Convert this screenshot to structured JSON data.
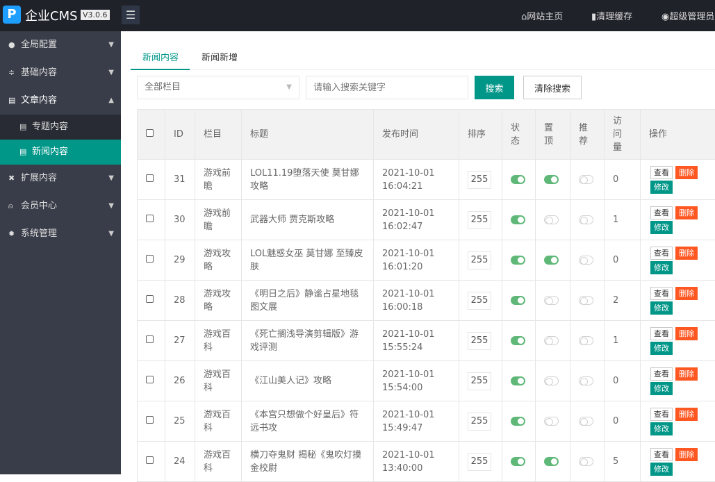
{
  "header": {
    "brand": "企业CMS",
    "version": "V3.0.6",
    "links": [
      {
        "icon": "home-icon",
        "label": "网站主页"
      },
      {
        "icon": "trash-icon",
        "label": "清理缓存"
      },
      {
        "icon": "user-circle-icon",
        "label": "超级管理员"
      }
    ]
  },
  "sidebar": {
    "items": [
      {
        "icon": "globe-icon",
        "label": "全局配置",
        "expanded": false
      },
      {
        "icon": "sliders-icon",
        "label": "基础内容",
        "expanded": false
      },
      {
        "icon": "document-icon",
        "label": "文章内容",
        "expanded": true,
        "children": [
          {
            "label": "专题内容",
            "active": false
          },
          {
            "label": "新闻内容",
            "active": true
          }
        ]
      },
      {
        "icon": "expand-icon",
        "label": "扩展内容",
        "expanded": false
      },
      {
        "icon": "lock-user-icon",
        "label": "会员中心",
        "expanded": false
      },
      {
        "icon": "gear-icon",
        "label": "系统管理",
        "expanded": false
      }
    ]
  },
  "tabs": [
    {
      "label": "新闻内容",
      "active": true
    },
    {
      "label": "新闻新增",
      "active": false
    }
  ],
  "filter": {
    "category": "全部栏目",
    "search_placeholder": "请输入搜索关键字",
    "search_label": "搜索",
    "clear_label": "清除搜索"
  },
  "table": {
    "headers": [
      "ID",
      "栏目",
      "标题",
      "发布时间",
      "排序",
      "状态",
      "置顶",
      "推荐",
      "访问量",
      "操作"
    ],
    "actions": {
      "view": "查看",
      "delete": "删除",
      "edit": "修改"
    },
    "rows": [
      {
        "id": "31",
        "category": "游戏前瞻",
        "title": "LOL11.19堕落天使 莫甘娜攻略",
        "date": "2021-10-01",
        "time": "16:04:21",
        "sort": "255",
        "status": true,
        "top": true,
        "recommend": false,
        "visits": "0"
      },
      {
        "id": "30",
        "category": "游戏前瞻",
        "title": "武器大师 贾克斯攻略",
        "date": "2021-10-01",
        "time": "16:02:47",
        "sort": "255",
        "status": true,
        "top": false,
        "recommend": false,
        "visits": "1"
      },
      {
        "id": "29",
        "category": "游戏攻略",
        "title": "LOL魅惑女巫 莫甘娜 至臻皮肤",
        "date": "2021-10-01",
        "time": "16:01:20",
        "sort": "255",
        "status": true,
        "top": true,
        "recommend": false,
        "visits": "0"
      },
      {
        "id": "28",
        "category": "游戏攻略",
        "title": "《明日之后》静谧占星地毯图文展",
        "date": "2021-10-01",
        "time": "16:00:18",
        "sort": "255",
        "status": true,
        "top": false,
        "recommend": false,
        "visits": "2"
      },
      {
        "id": "27",
        "category": "游戏百科",
        "title": "《死亡搁浅导演剪辑版》游戏评测",
        "date": "2021-10-01",
        "time": "15:55:24",
        "sort": "255",
        "status": true,
        "top": false,
        "recommend": false,
        "visits": "1"
      },
      {
        "id": "26",
        "category": "游戏百科",
        "title": "《江山美人记》攻略",
        "date": "2021-10-01",
        "time": "15:54:00",
        "sort": "255",
        "status": true,
        "top": false,
        "recommend": false,
        "visits": "0"
      },
      {
        "id": "25",
        "category": "游戏百科",
        "title": "《本宫只想做个好皇后》符远书攻",
        "date": "2021-10-01",
        "time": "15:49:47",
        "sort": "255",
        "status": true,
        "top": false,
        "recommend": false,
        "visits": "0"
      },
      {
        "id": "24",
        "category": "游戏百科",
        "title": "横刀夺鬼财 揭秘《鬼吹灯摸金校尉",
        "date": "2021-10-01",
        "time": "13:40:00",
        "sort": "255",
        "status": true,
        "top": true,
        "recommend": false,
        "visits": "5"
      }
    ]
  },
  "colors": {
    "accent": "#009688",
    "danger": "#ff5722",
    "switch_on": "#5fb878",
    "sidebar": "#393d49",
    "header": "#20222a"
  }
}
